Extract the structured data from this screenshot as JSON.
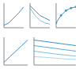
{
  "chart_data": [
    {
      "type": "line",
      "x": [
        0,
        1,
        2,
        3,
        4
      ],
      "xlim": [
        0,
        4
      ],
      "ylim": [
        0,
        10
      ],
      "tick_labels": false,
      "series": [
        {
          "color": "#3a8fc4",
          "values": [
            1,
            2,
            4,
            6,
            8.5
          ]
        }
      ]
    },
    {
      "type": "line",
      "x": [
        0,
        1,
        2,
        3,
        4
      ],
      "xlim": [
        0,
        4
      ],
      "ylim": [
        0,
        10
      ],
      "tick_labels": false,
      "series": [
        {
          "color": "#3a8fc4",
          "values": [
            9,
            7,
            5,
            4,
            3
          ]
        },
        {
          "color": "#7fc0e0",
          "values": [
            8,
            5,
            3,
            2,
            1.5
          ]
        }
      ]
    },
    {
      "type": "line",
      "x": [
        0,
        1,
        2,
        3,
        4
      ],
      "xlim": [
        0,
        4
      ],
      "ylim": [
        0,
        10
      ],
      "tick_labels": false,
      "series": [
        {
          "color": "#3a8fc4",
          "marker": "circle",
          "values": [
            2,
            5,
            7,
            8,
            8.5
          ]
        }
      ]
    },
    {
      "type": "line",
      "x": [
        0,
        1,
        2,
        3,
        4
      ],
      "xlim": [
        0,
        4
      ],
      "ylim": [
        0,
        10
      ],
      "tick_labels": false,
      "series": [
        {
          "color": "#3a8fc4",
          "values": [
            1,
            3,
            5,
            7,
            9
          ]
        }
      ]
    },
    {
      "type": "line",
      "x": [
        0,
        1,
        2,
        3,
        4
      ],
      "xlim": [
        0,
        4
      ],
      "ylim": [
        0,
        10
      ],
      "tick_labels": false,
      "series": [
        {
          "color": "#3a8fc4",
          "values": [
            9,
            8.5,
            8,
            7.5,
            7
          ]
        },
        {
          "color": "#5aa8d6",
          "values": [
            7,
            6.5,
            6,
            5.5,
            5
          ]
        },
        {
          "color": "#7fc0e0",
          "values": [
            5,
            4.5,
            4,
            3.6,
            3.2
          ]
        },
        {
          "color": "#a8d6ee",
          "values": [
            3,
            2.8,
            2.5,
            2.2,
            2
          ]
        }
      ]
    }
  ]
}
